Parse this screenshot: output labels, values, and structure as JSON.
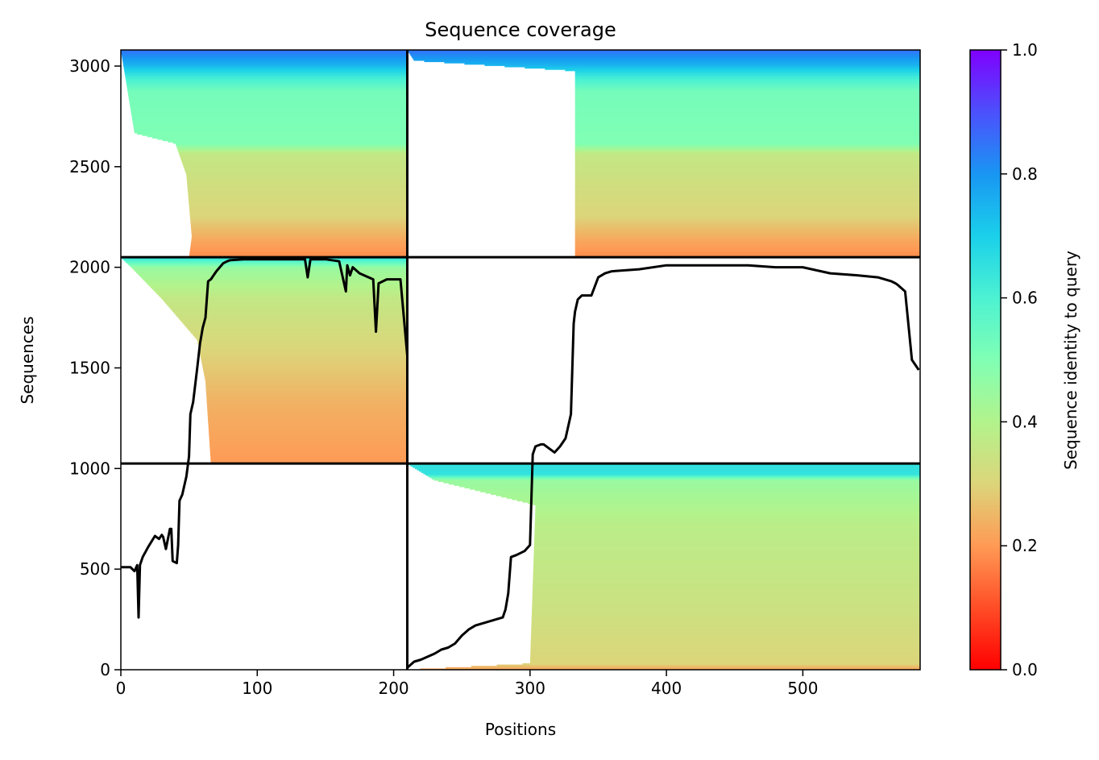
{
  "chart_data": {
    "type": "heatmap",
    "title": "Sequence coverage",
    "xlabel": "Positions",
    "ylabel": "Sequences",
    "xlim": [
      0,
      586
    ],
    "ylim": [
      0,
      3080
    ],
    "x_ticks": [
      0,
      100,
      200,
      300,
      400,
      500
    ],
    "y_ticks": [
      0,
      500,
      1000,
      1500,
      2000,
      2500,
      3000
    ],
    "colorbar": {
      "label": "Sequence identity to query",
      "range": [
        0,
        1
      ],
      "ticks": [
        "0.0",
        "0.2",
        "0.4",
        "0.6",
        "0.8",
        "1.0"
      ],
      "colormap": "rainbow_r"
    },
    "chain_boundaries": {
      "x": [
        210
      ],
      "y": [
        1025,
        2050
      ]
    },
    "msa_blocks": [
      {
        "x_range": [
          0,
          210
        ],
        "y_range": [
          2050,
          3080
        ],
        "chain": "upper-left"
      },
      {
        "x_range": [
          210,
          586
        ],
        "y_range": [
          2050,
          3080
        ],
        "chain": "upper-right"
      },
      {
        "x_range": [
          0,
          210
        ],
        "y_range": [
          1025,
          2050
        ],
        "chain": "middle-left"
      },
      {
        "x_range": [
          210,
          586
        ],
        "y_range": [
          0,
          1025
        ],
        "chain": "lower-right"
      }
    ],
    "coverage_line": {
      "name": "",
      "x": [
        0,
        3,
        7,
        10,
        12,
        13,
        14,
        16,
        20,
        25,
        28,
        30,
        31,
        33,
        36,
        37,
        38,
        41,
        42,
        43,
        45,
        48,
        50,
        51,
        53,
        56,
        58,
        60,
        62,
        64,
        66,
        70,
        75,
        78,
        80,
        90,
        100,
        120,
        135,
        137,
        139,
        150,
        160,
        165,
        166,
        168,
        170,
        175,
        185,
        187,
        189,
        195,
        205,
        210,
        210,
        215,
        220,
        230,
        235,
        240,
        245,
        250,
        255,
        260,
        270,
        280,
        282,
        284,
        286,
        290,
        296,
        300,
        302,
        304,
        308,
        310,
        318,
        322,
        326,
        330,
        332,
        333,
        335,
        338,
        345,
        350,
        355,
        360,
        380,
        400,
        420,
        440,
        460,
        480,
        500,
        520,
        540,
        555,
        565,
        568,
        570,
        575,
        580,
        585
      ],
      "y": [
        510,
        510,
        510,
        490,
        520,
        260,
        520,
        560,
        610,
        665,
        650,
        670,
        660,
        600,
        700,
        700,
        540,
        530,
        620,
        840,
        870,
        960,
        1060,
        1270,
        1330,
        1500,
        1620,
        1700,
        1750,
        1930,
        1940,
        1980,
        2020,
        2030,
        2035,
        2040,
        2040,
        2040,
        2040,
        1950,
        2040,
        2040,
        2030,
        1880,
        2010,
        1960,
        2000,
        1970,
        1940,
        1680,
        1920,
        1940,
        1940,
        1560,
        10,
        40,
        50,
        80,
        100,
        110,
        130,
        170,
        200,
        220,
        240,
        260,
        300,
        380,
        560,
        570,
        590,
        620,
        1070,
        1110,
        1120,
        1120,
        1080,
        1110,
        1150,
        1270,
        1720,
        1780,
        1840,
        1860,
        1860,
        1950,
        1970,
        1980,
        1990,
        2010,
        2010,
        2010,
        2010,
        2000,
        2000,
        1970,
        1960,
        1950,
        1930,
        1920,
        1910,
        1880,
        1540,
        1490
      ]
    }
  }
}
